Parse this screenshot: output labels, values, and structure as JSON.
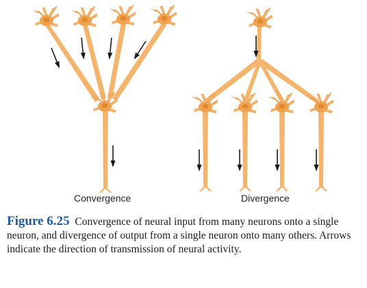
{
  "labels": {
    "convergence": "Convergence",
    "divergence": "Divergence"
  },
  "caption": {
    "figure_label": "Figure 6.25",
    "text": "Convergence of neural input from many neurons onto a single neuron, and divergence of output from a single neuron onto many others. Arrows indicate the direction of transmission of neural activity."
  },
  "colors": {
    "neuron_fill": "#f5b46b",
    "neuron_body": "#f0a24e",
    "nucleus": "#e08a2f",
    "arrow": "#1a1a1a",
    "figure_label": "#1f5aa6"
  },
  "icons": [
    "neuron-icon",
    "arrow-down-icon"
  ]
}
